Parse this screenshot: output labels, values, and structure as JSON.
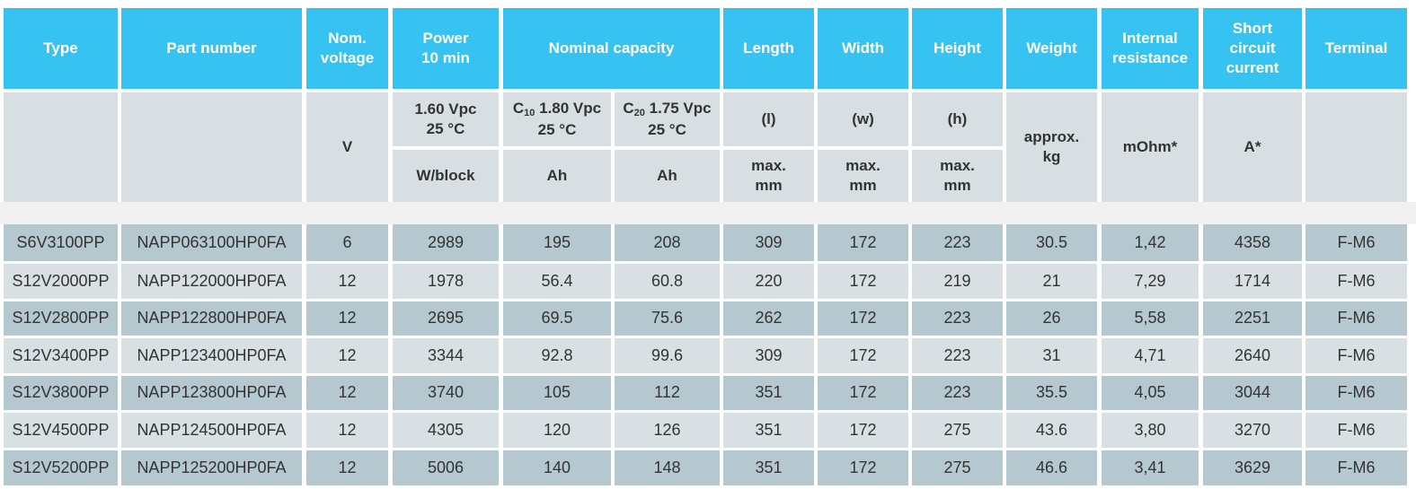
{
  "header": [
    {
      "lines": [
        "Type"
      ]
    },
    {
      "lines": [
        "Part number"
      ]
    },
    {
      "lines": [
        "Nom.",
        "voltage"
      ]
    },
    {
      "lines": [
        "Power",
        "10 min"
      ]
    },
    {
      "lines": [
        "Nominal capacity"
      ]
    },
    {
      "lines": [
        "Length"
      ]
    },
    {
      "lines": [
        "Width"
      ]
    },
    {
      "lines": [
        "Height"
      ]
    },
    {
      "lines": [
        "Weight"
      ]
    },
    {
      "lines": [
        "Internal",
        "resistance"
      ]
    },
    {
      "lines": [
        "Short",
        "circuit",
        "current"
      ]
    },
    {
      "lines": [
        "Terminal"
      ]
    }
  ],
  "subheader": {
    "voltage": {
      "lines": [
        "V"
      ]
    },
    "power": {
      "lines": [
        "1.60 Vpc",
        "25 °C"
      ]
    },
    "power_unit": {
      "lines": [
        "W/block"
      ]
    },
    "c10": {
      "symbol": "C",
      "subscript": "10",
      "lines": [
        "1.80 Vpc",
        "25 °C"
      ]
    },
    "c10_unit": {
      "lines": [
        "Ah"
      ]
    },
    "c20": {
      "symbol": "C",
      "subscript": "20",
      "lines": [
        "1.75 Vpc",
        "25 °C"
      ]
    },
    "c20_unit": {
      "lines": [
        "Ah"
      ]
    },
    "length": {
      "lines": [
        "(l)"
      ]
    },
    "length_unit": {
      "lines": [
        "max.",
        "mm"
      ]
    },
    "width": {
      "lines": [
        "(w)"
      ]
    },
    "width_unit": {
      "lines": [
        "max.",
        "mm"
      ]
    },
    "height": {
      "lines": [
        "(h)"
      ]
    },
    "height_unit": {
      "lines": [
        "max.",
        "mm"
      ]
    },
    "weight": {
      "lines": [
        "approx.",
        "kg"
      ]
    },
    "resistance": {
      "lines": [
        "mOhm*"
      ]
    },
    "current": {
      "lines": [
        "A*"
      ]
    }
  },
  "rows": [
    [
      "S6V3100PP",
      "NAPP063100HP0FA",
      "6",
      "2989",
      "195",
      "208",
      "309",
      "172",
      "223",
      "30.5",
      "1,42",
      "4358",
      "F-M6"
    ],
    [
      "S12V2000PP",
      "NAPP122000HP0FA",
      "12",
      "1978",
      "56.4",
      "60.8",
      "220",
      "172",
      "219",
      "21",
      "7,29",
      "1714",
      "F-M6"
    ],
    [
      "S12V2800PP",
      "NAPP122800HP0FA",
      "12",
      "2695",
      "69.5",
      "75.6",
      "262",
      "172",
      "223",
      "26",
      "5,58",
      "2251",
      "F-M6"
    ],
    [
      "S12V3400PP",
      "NAPP123400HP0FA",
      "12",
      "3344",
      "92.8",
      "99.6",
      "309",
      "172",
      "223",
      "31",
      "4,71",
      "2640",
      "F-M6"
    ],
    [
      "S12V3800PP",
      "NAPP123800HP0FA",
      "12",
      "3740",
      "105",
      "112",
      "351",
      "172",
      "223",
      "35.5",
      "4,05",
      "3044",
      "F-M6"
    ],
    [
      "S12V4500PP",
      "NAPP124500HP0FA",
      "12",
      "4305",
      "120",
      "126",
      "351",
      "172",
      "275",
      "43.6",
      "3,80",
      "3270",
      "F-M6"
    ],
    [
      "S12V5200PP",
      "NAPP125200HP0FA",
      "12",
      "5006",
      "140",
      "148",
      "351",
      "172",
      "275",
      "46.6",
      "3,41",
      "3629",
      "F-M6"
    ]
  ]
}
